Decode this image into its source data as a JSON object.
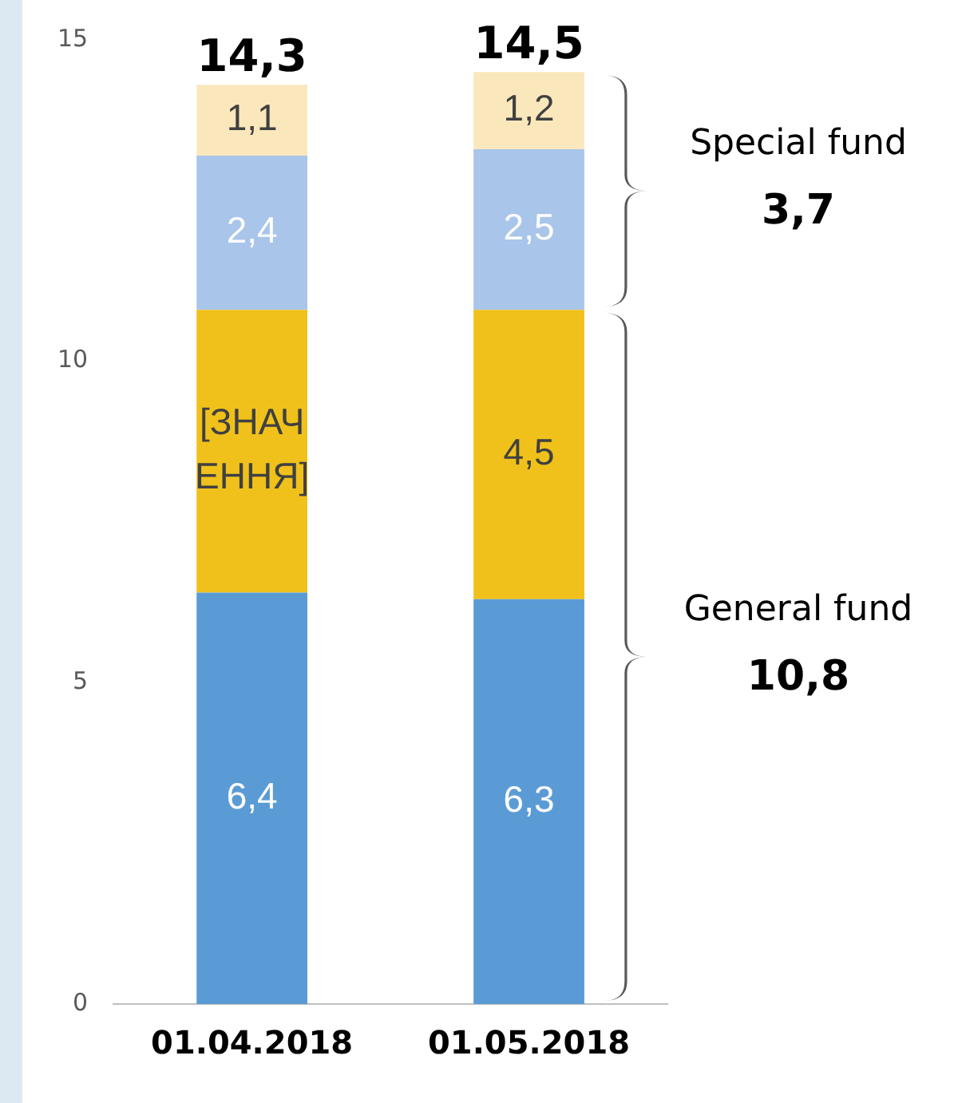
{
  "chart_data": {
    "type": "bar",
    "stacked": true,
    "categories": [
      "01.04.2018",
      "01.05.2018"
    ],
    "series": [
      {
        "color": "#5b9bd5",
        "values": [
          6.4,
          6.3
        ],
        "value_labels": [
          "6,4",
          "6,3"
        ]
      },
      {
        "color": "#f0c11b",
        "values": [
          4.4,
          4.5
        ],
        "value_labels": [
          "[ЗНАЧЕННЯ]",
          "4,5"
        ]
      },
      {
        "color": "#a9c5ea",
        "values": [
          2.4,
          2.5
        ],
        "value_labels": [
          "2,4",
          "2,5"
        ]
      },
      {
        "color": "#fae8bc",
        "values": [
          1.1,
          1.2
        ],
        "value_labels": [
          "1,1",
          "1,2"
        ]
      }
    ],
    "totals": [
      "14,3",
      "14,5"
    ],
    "ylim": [
      0,
      15
    ],
    "yticks": [
      0,
      5,
      10,
      15
    ],
    "grid": false,
    "legend": false,
    "annotations": [
      "Special fund",
      "3,7",
      "General fund",
      "10,8"
    ]
  }
}
